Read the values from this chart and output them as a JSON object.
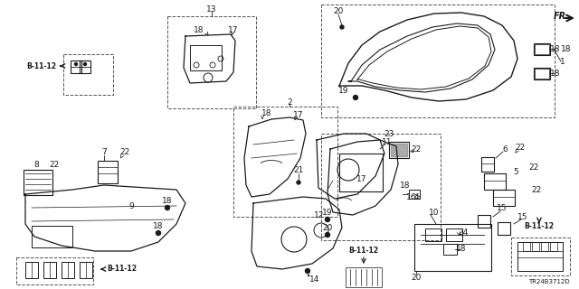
{
  "background_color": "#ffffff",
  "line_color": "#1a1a1a",
  "diagram_code": "TR24B3712D",
  "figsize": [
    6.4,
    3.2
  ],
  "dpi": 100,
  "labels": {
    "fr": "FR.",
    "b1112": "B-11-12",
    "diag": "TR24B3712D"
  },
  "gray": "#666666",
  "darkgray": "#333333"
}
